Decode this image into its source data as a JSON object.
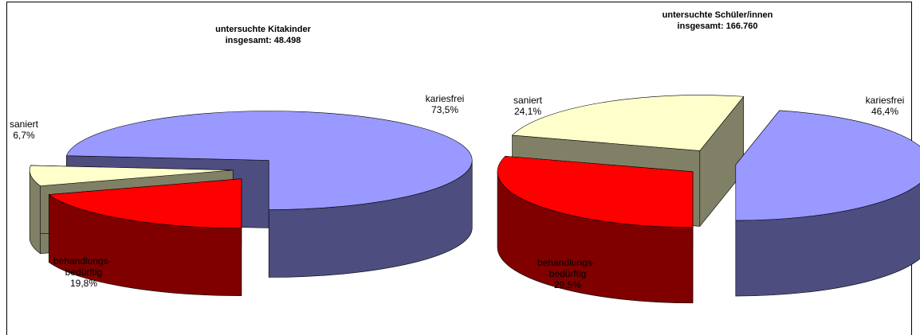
{
  "chart_data": [
    {
      "type": "pie3d",
      "title": "untersuchte Kitakinder",
      "subtitle": "insgesamt: 48.498",
      "categories": [
        "kariesfrei",
        "saniert",
        "behandlungs-\nbedürftig"
      ],
      "values": [
        73.5,
        6.7,
        19.8
      ],
      "value_labels": [
        "73,5%",
        "6,7%",
        "19,8%"
      ],
      "colors": [
        "#9999ff",
        "#ffffcc",
        "#ff0000"
      ]
    },
    {
      "type": "pie3d",
      "title": "untersuchte Schüler/innen",
      "subtitle": "insgesamt: 166.760",
      "categories": [
        "kariesfrei",
        "saniert",
        "behandlungs-\nbedürftig"
      ],
      "values": [
        46.4,
        24.1,
        29.5
      ],
      "value_labels": [
        "46,4%",
        "24,1%",
        "29,5%"
      ],
      "colors": [
        "#9999ff",
        "#ffffcc",
        "#ff0000"
      ]
    }
  ]
}
